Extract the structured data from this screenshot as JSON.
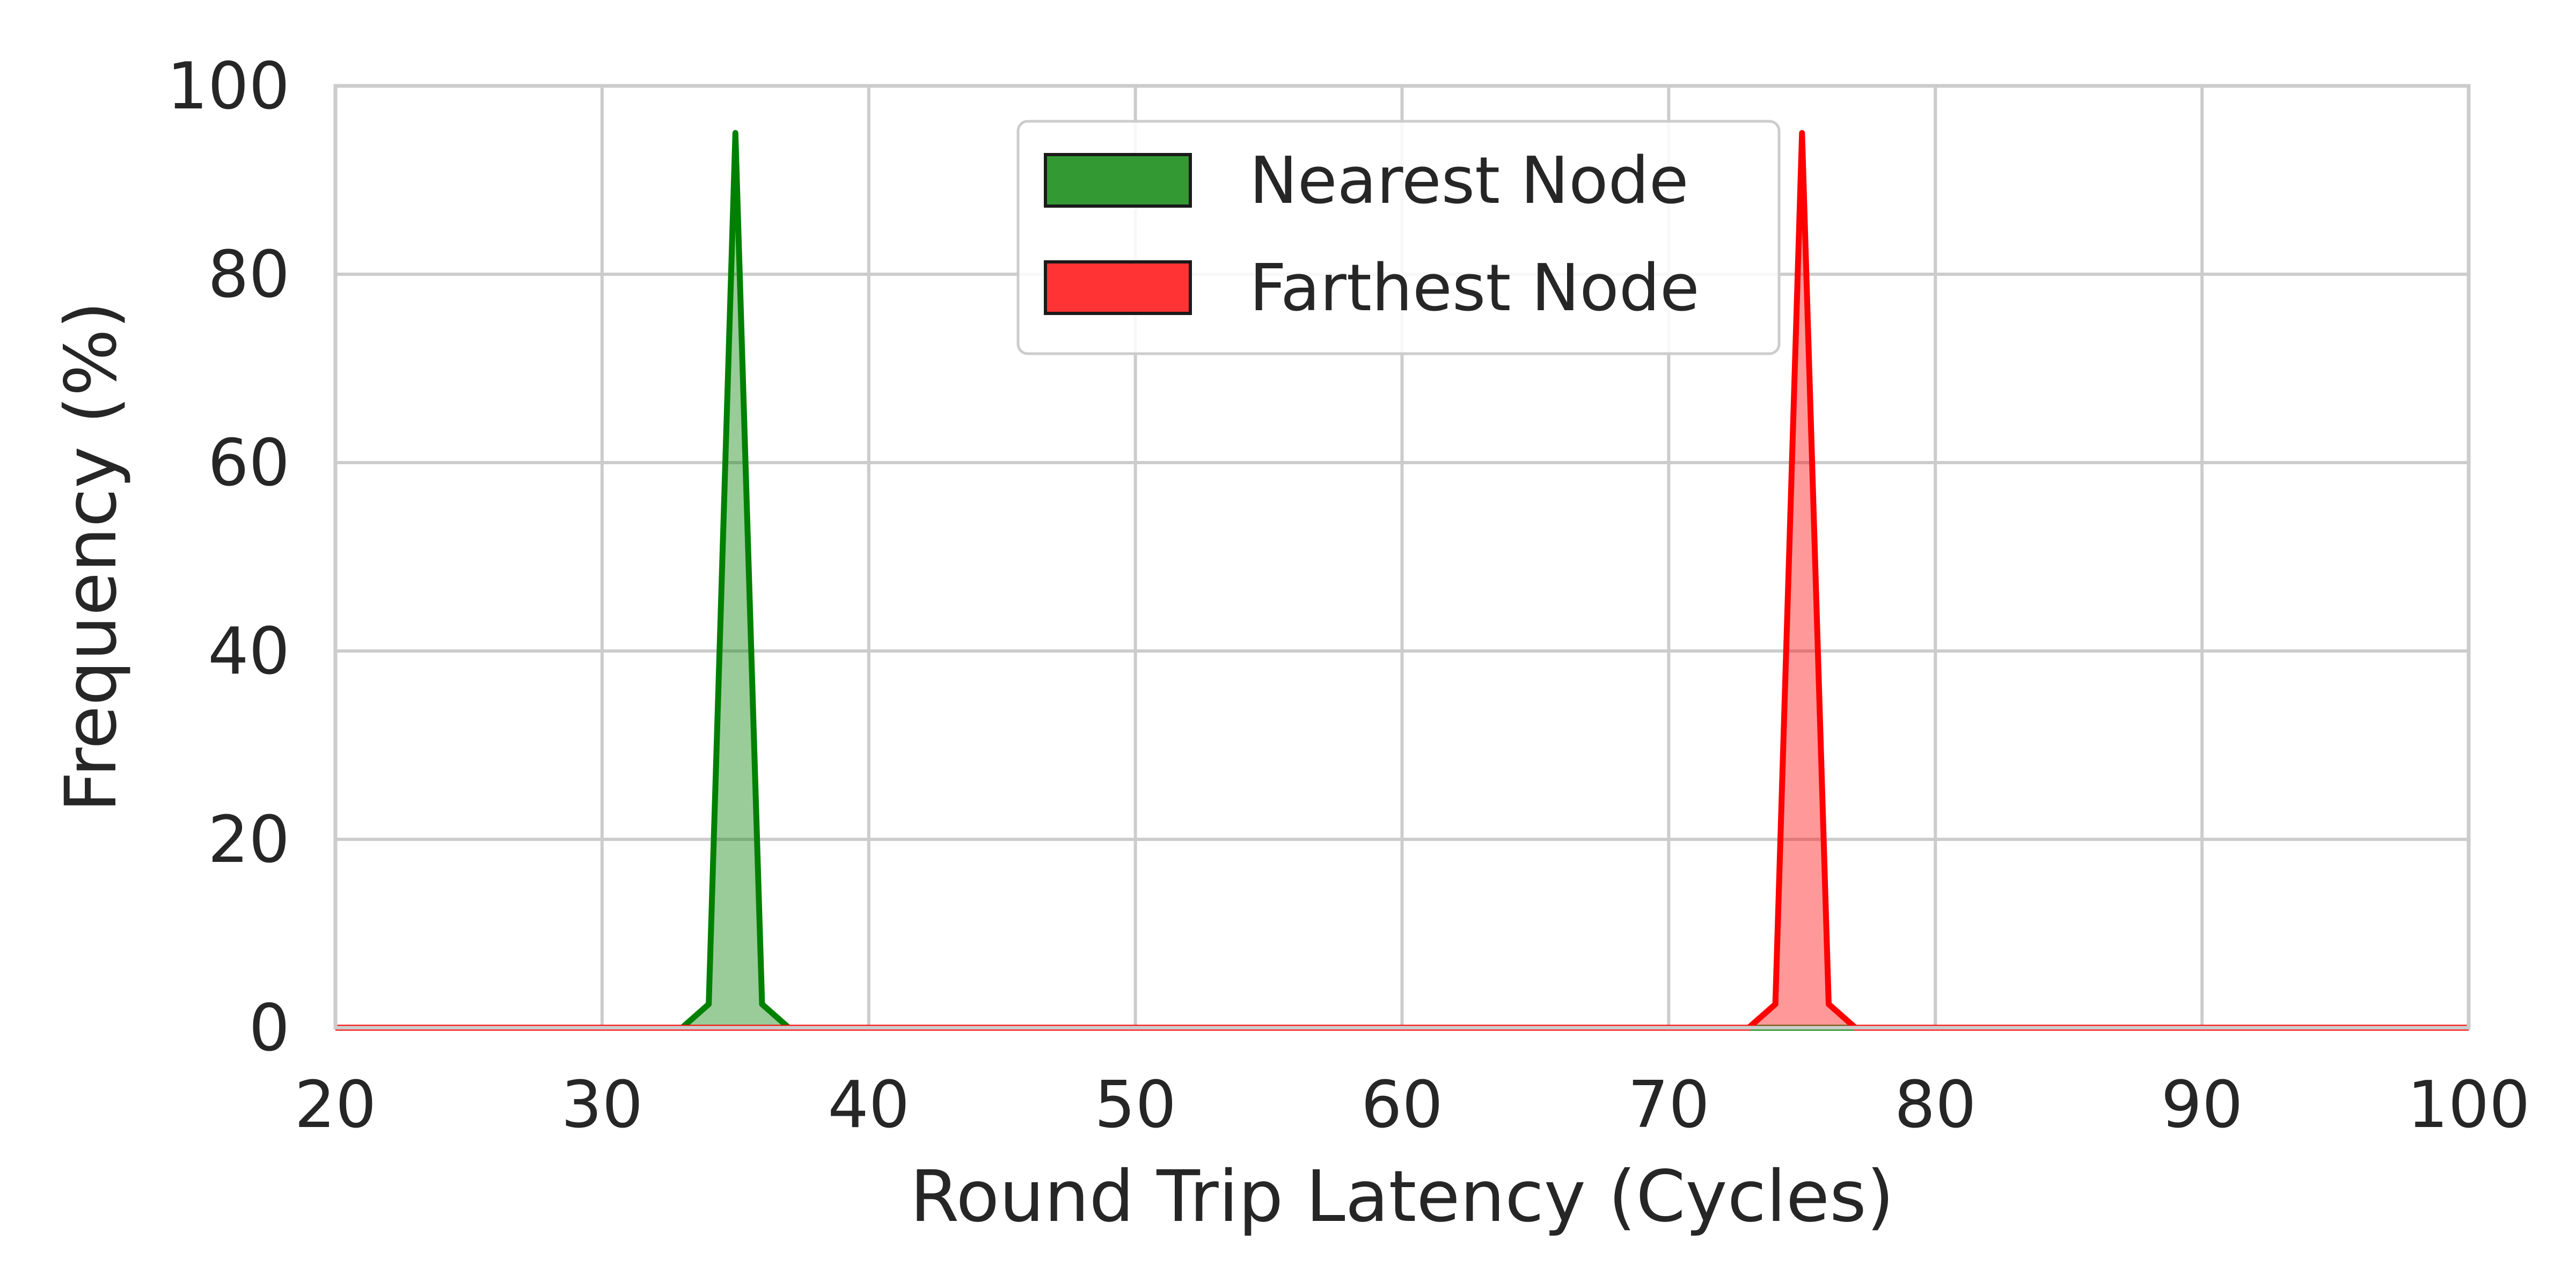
{
  "chart_data": {
    "type": "area",
    "title": "",
    "xlabel": "Round Trip Latency (Cycles)",
    "ylabel": "Frequency (%)",
    "xlim": [
      20,
      100
    ],
    "ylim": [
      0,
      100
    ],
    "xticks": [
      20,
      30,
      40,
      50,
      60,
      70,
      80,
      90,
      100
    ],
    "yticks": [
      0,
      20,
      40,
      60,
      80,
      100
    ],
    "xtick_labels": [
      "20",
      "30",
      "40",
      "50",
      "60",
      "70",
      "80",
      "90",
      "100"
    ],
    "ytick_labels": [
      "0",
      "20",
      "40",
      "60",
      "80",
      "100"
    ],
    "grid": true,
    "legend_position": "top-center",
    "series": [
      {
        "name": "Nearest Node",
        "color": "#008000",
        "legend_color": "#339933",
        "points": [
          [
            20,
            0
          ],
          [
            33,
            0
          ],
          [
            34,
            2.5
          ],
          [
            35,
            95
          ],
          [
            36,
            2.5
          ],
          [
            37,
            0
          ],
          [
            100,
            0
          ]
        ]
      },
      {
        "name": "Farthest Node",
        "color": "#ff0000",
        "legend_color": "#ff3333",
        "points": [
          [
            20,
            0
          ],
          [
            73,
            0
          ],
          [
            74,
            2.5
          ],
          [
            75,
            95
          ],
          [
            76,
            2.5
          ],
          [
            77,
            0
          ],
          [
            100,
            0
          ]
        ]
      }
    ]
  }
}
